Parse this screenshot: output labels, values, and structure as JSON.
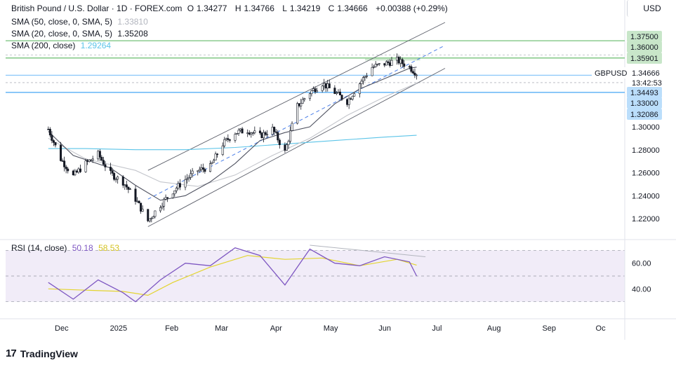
{
  "header": {
    "symbol_title": "British Pound / U.S. Dollar · 1D · FOREX.com",
    "ohlc": [
      {
        "label": "O",
        "value": "1.34277"
      },
      {
        "label": "H",
        "value": "1.34766"
      },
      {
        "label": "L",
        "value": "1.34219"
      },
      {
        "label": "C",
        "value": "1.34666"
      },
      {
        "label": "",
        "value": "+0.00388 (+0.29%)"
      }
    ],
    "indicators": [
      {
        "label": "SMA (50, close, 0, SMA, 5)",
        "value": "1.33810",
        "color": "#b2b5be"
      },
      {
        "label": "SMA (20, close, 0, SMA, 5)",
        "value": "1.35208",
        "color": "#131722"
      },
      {
        "label": "SMA (200, close)",
        "value": "1.29264",
        "color": "#5bc4e8"
      }
    ],
    "currency": "USD"
  },
  "rsi_legend": {
    "label": "RSI (14, close)",
    "rsi_value": "50.18",
    "ma_value": "58.53",
    "rsi_color": "#7e57c2",
    "ma_color": "#e3d430"
  },
  "branding": {
    "name": "TradingView"
  },
  "chart_data": {
    "type": "line",
    "subtype": "candlestick",
    "series_name": "GBPUSD",
    "price_scale": {
      "ylim": [
        1.2,
        1.385
      ],
      "tick_labels": [
        "1.30000",
        "1.28000",
        "1.26000",
        "1.24000",
        "1.22000"
      ]
    },
    "x_tick_labels": [
      "Dec",
      "2025",
      "Feb",
      "Mar",
      "Apr",
      "May",
      "Jun",
      "Jul",
      "Aug",
      "Sep",
      "Oc"
    ],
    "price_path": [
      [
        "2024-11-25",
        1.298
      ],
      [
        "2024-12-02",
        1.272
      ],
      [
        "2024-12-09",
        1.257
      ],
      [
        "2024-12-16",
        1.268
      ],
      [
        "2024-12-23",
        1.276
      ],
      [
        "2024-12-30",
        1.259
      ],
      [
        "2025-01-06",
        1.252
      ],
      [
        "2025-01-13",
        1.237
      ],
      [
        "2025-01-20",
        1.218
      ],
      [
        "2025-01-27",
        1.232
      ],
      [
        "2025-02-03",
        1.244
      ],
      [
        "2025-02-10",
        1.254
      ],
      [
        "2025-02-17",
        1.262
      ],
      [
        "2025-02-24",
        1.265
      ],
      [
        "2025-03-03",
        1.285
      ],
      [
        "2025-03-10",
        1.295
      ],
      [
        "2025-03-17",
        1.297
      ],
      [
        "2025-03-24",
        1.292
      ],
      [
        "2025-03-31",
        1.298
      ],
      [
        "2025-04-07",
        1.278
      ],
      [
        "2025-04-14",
        1.318
      ],
      [
        "2025-04-21",
        1.33
      ],
      [
        "2025-04-28",
        1.338
      ],
      [
        "2025-05-05",
        1.33
      ],
      [
        "2025-05-12",
        1.322
      ],
      [
        "2025-05-19",
        1.338
      ],
      [
        "2025-05-26",
        1.352
      ],
      [
        "2025-06-02",
        1.355
      ],
      [
        "2025-06-09",
        1.358
      ],
      [
        "2025-06-16",
        1.352
      ],
      [
        "2025-06-20",
        1.3467
      ]
    ],
    "sma_20_path": [
      [
        "2024-11-25",
        1.296
      ],
      [
        "2024-12-09",
        1.275
      ],
      [
        "2024-12-30",
        1.264
      ],
      [
        "2025-01-13",
        1.249
      ],
      [
        "2025-01-27",
        1.236
      ],
      [
        "2025-02-10",
        1.24
      ],
      [
        "2025-02-24",
        1.252
      ],
      [
        "2025-03-10",
        1.268
      ],
      [
        "2025-03-24",
        1.288
      ],
      [
        "2025-04-07",
        1.295
      ],
      [
        "2025-04-21",
        1.3
      ],
      [
        "2025-05-05",
        1.32
      ],
      [
        "2025-05-19",
        1.333
      ],
      [
        "2025-06-02",
        1.342
      ],
      [
        "2025-06-16",
        1.351
      ],
      [
        "2025-06-20",
        1.352
      ]
    ],
    "sma_50_path": [
      [
        "2024-11-25",
        1.29
      ],
      [
        "2024-12-16",
        1.272
      ],
      [
        "2025-01-13",
        1.262
      ],
      [
        "2025-01-27",
        1.252
      ],
      [
        "2025-02-17",
        1.248
      ],
      [
        "2025-03-10",
        1.258
      ],
      [
        "2025-03-31",
        1.275
      ],
      [
        "2025-04-21",
        1.29
      ],
      [
        "2025-05-12",
        1.31
      ],
      [
        "2025-06-02",
        1.326
      ],
      [
        "2025-06-20",
        1.338
      ]
    ],
    "sma_200_path": [
      [
        "2024-11-25",
        1.281
      ],
      [
        "2024-12-16",
        1.281
      ],
      [
        "2025-01-13",
        1.28
      ],
      [
        "2025-02-10",
        1.28
      ],
      [
        "2025-03-10",
        1.282
      ],
      [
        "2025-04-07",
        1.285
      ],
      [
        "2025-05-05",
        1.288
      ],
      [
        "2025-06-02",
        1.291
      ],
      [
        "2025-06-20",
        1.2926
      ]
    ],
    "channel": {
      "upper": [
        [
          "2025-01-20",
          1.262
        ],
        [
          "2025-07-06",
          1.391
        ]
      ],
      "lower": [
        [
          "2025-01-20",
          1.213
        ],
        [
          "2025-07-06",
          1.351
        ]
      ],
      "mid_dashed": [
        [
          "2025-01-20",
          1.237
        ],
        [
          "2025-07-06",
          1.371
        ]
      ]
    },
    "horizontal_levels": [
      {
        "value": 1.375,
        "label": "1.37500",
        "color": "#81c784",
        "bg": "#c8e6c9",
        "line": "solid"
      },
      {
        "value": 1.36,
        "label": "1.36000",
        "color": "#81c784",
        "bg": "#c8e6c9",
        "line": "solid"
      },
      {
        "value": 1.35901,
        "label": "1.35901",
        "color": "#81c784",
        "bg": "#c8e6c9",
        "line": "none"
      },
      {
        "value": 1.34493,
        "label": "1.34493",
        "color": "#90caf9",
        "bg": "#bbdefb",
        "line": "solid"
      },
      {
        "value": 1.33,
        "label": "1.33000",
        "color": "#64b5f6",
        "bg": "#bbdefb",
        "line": "solid"
      },
      {
        "value": 1.32086,
        "label": "1.32086",
        "color": "#90caf9",
        "bg": "#bbdefb",
        "line": "none"
      }
    ],
    "current_price": {
      "symbol": "GBPUSD",
      "value": "1.34666",
      "countdown": "13:42:53"
    },
    "rsi": {
      "ylim": [
        20,
        80
      ],
      "tick_labels": [
        "60.00",
        "40.00"
      ],
      "band": [
        30,
        70
      ],
      "rsi_path": [
        [
          "2024-11-25",
          45
        ],
        [
          "2024-12-09",
          32
        ],
        [
          "2024-12-23",
          47
        ],
        [
          "2025-01-06",
          37
        ],
        [
          "2025-01-13",
          30
        ],
        [
          "2025-01-27",
          47
        ],
        [
          "2025-02-10",
          60
        ],
        [
          "2025-02-24",
          58
        ],
        [
          "2025-03-10",
          72
        ],
        [
          "2025-03-24",
          66
        ],
        [
          "2025-04-07",
          43
        ],
        [
          "2025-04-21",
          71
        ],
        [
          "2025-05-05",
          60
        ],
        [
          "2025-05-19",
          58
        ],
        [
          "2025-06-02",
          65
        ],
        [
          "2025-06-16",
          61
        ],
        [
          "2025-06-20",
          50
        ]
      ],
      "ma_path": [
        [
          "2024-11-25",
          40
        ],
        [
          "2024-12-16",
          39
        ],
        [
          "2025-01-06",
          38
        ],
        [
          "2025-01-20",
          35
        ],
        [
          "2025-02-03",
          45
        ],
        [
          "2025-02-24",
          57
        ],
        [
          "2025-03-17",
          66
        ],
        [
          "2025-04-07",
          63
        ],
        [
          "2025-04-28",
          64
        ],
        [
          "2025-05-19",
          58
        ],
        [
          "2025-06-09",
          63
        ],
        [
          "2025-06-20",
          58.5
        ]
      ],
      "divergence_line": [
        [
          "2025-04-21",
          74
        ],
        [
          "2025-06-25",
          65
        ]
      ]
    }
  }
}
